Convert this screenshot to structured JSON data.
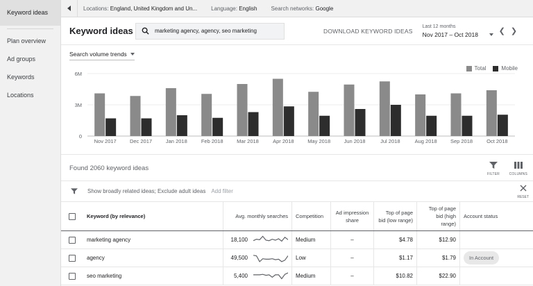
{
  "sidebar": {
    "items": [
      {
        "label": "Keyword ideas"
      },
      {
        "label": "Plan overview"
      },
      {
        "label": "Ad groups"
      },
      {
        "label": "Keywords"
      },
      {
        "label": "Locations"
      }
    ]
  },
  "filters": {
    "locations_label": "Locations:",
    "locations_value": "England, United Kingdom and Un...",
    "language_label": "Language:",
    "language_value": "English",
    "networks_label": "Search networks:",
    "networks_value": "Google"
  },
  "header": {
    "title": "Keyword ideas",
    "search_value": "marketing agency, agency, seo marketing",
    "download_label": "DOWNLOAD KEYWORD IDEAS",
    "date_label": "Last 12 months",
    "date_value": "Nov 2017 – Oct 2018"
  },
  "trend": {
    "select_label": "Search volume trends",
    "legend_total": "Total",
    "legend_mobile": "Mobile"
  },
  "chart_data": {
    "type": "bar",
    "categories": [
      "Nov 2017",
      "Dec 2017",
      "Jan 2018",
      "Feb 2018",
      "Mar 2018",
      "Apr 2018",
      "May 2018",
      "Jun 2018",
      "Jul 2018",
      "Aug 2018",
      "Sep 2018",
      "Oct 2018"
    ],
    "series": [
      {
        "name": "Total",
        "color": "#8a8a8a",
        "values": [
          4.1,
          3.85,
          4.6,
          4.05,
          5.0,
          5.5,
          4.25,
          4.95,
          5.25,
          4.0,
          4.1,
          4.4
        ]
      },
      {
        "name": "Mobile",
        "color": "#2d2d2d",
        "values": [
          1.7,
          1.7,
          2.0,
          1.75,
          2.3,
          2.85,
          1.95,
          2.6,
          3.0,
          1.95,
          1.95,
          2.05
        ]
      }
    ],
    "yticks": [
      "0",
      "3M",
      "6M"
    ],
    "ylim": [
      0,
      6
    ],
    "grid": true
  },
  "results": {
    "found_text": "Found 2060 keyword ideas",
    "filter_tool": "FILTER",
    "columns_tool": "COLUMNS",
    "filter_text": "Show broadly related ideas; Exclude adult ideas",
    "add_filter": "Add filter",
    "reset": "RESET"
  },
  "table": {
    "headers": [
      "Keyword (by relevance)",
      "Avg. monthly searches",
      "Competition",
      "Ad impression share",
      "Top of page bid (low range)",
      "Top of page bid (high range)",
      "Account status"
    ],
    "rows": [
      {
        "keyword": "marketing agency",
        "searches": "18,100",
        "competition": "Medium",
        "impression": "–",
        "bid_low": "$4.78",
        "bid_high": "$12.90",
        "status": "",
        "spark": [
          0.55,
          0.4,
          0.45,
          0.1,
          0.5,
          0.55,
          0.4,
          0.5,
          0.35,
          0.6,
          0.2,
          0.45
        ]
      },
      {
        "keyword": "agency",
        "searches": "49,500",
        "competition": "Low",
        "impression": "–",
        "bid_low": "$1.17",
        "bid_high": "$1.79",
        "status": "In Account",
        "spark": [
          0.2,
          0.25,
          0.85,
          0.55,
          0.6,
          0.6,
          0.55,
          0.65,
          0.6,
          0.85,
          0.7,
          0.25
        ]
      },
      {
        "keyword": "seo marketing",
        "searches": "5,400",
        "competition": "Medium",
        "impression": "–",
        "bid_low": "$10.82",
        "bid_high": "$22.90",
        "status": "",
        "spark": [
          0.35,
          0.35,
          0.35,
          0.3,
          0.4,
          0.35,
          0.6,
          0.35,
          0.35,
          0.75,
          0.3,
          0.15
        ]
      }
    ]
  }
}
